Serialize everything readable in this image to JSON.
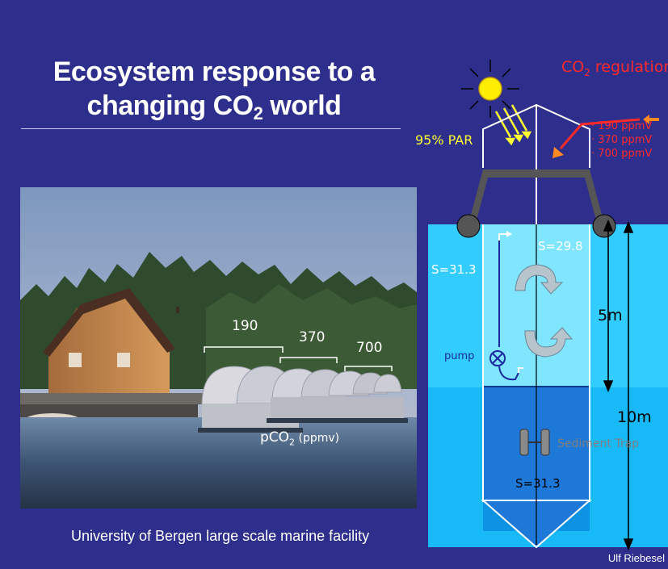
{
  "title": {
    "line1": "Ecosystem response to a",
    "line2_prefix": "changing CO",
    "line2_sub": "2",
    "line2_suffix": " world"
  },
  "photo": {
    "labels": [
      "190",
      "370",
      "700"
    ],
    "pco2_prefix": "pCO",
    "pco2_sub": "2",
    "pco2_suffix": " (ppmv)"
  },
  "caption": "University of Bergen large scale marine facility",
  "credit": "Ulf Riebesel",
  "diagram": {
    "co2_reg_prefix": "CO",
    "co2_reg_sub": "2",
    "co2_reg_suffix": " regulation",
    "levels": [
      "190 ppmV",
      "370 ppmV",
      "700 ppmV"
    ],
    "par": "95% PAR",
    "salinity_inner_top": "S=29.8",
    "salinity_outer": "S=31.3",
    "salinity_inner_bottom": "S=31.3",
    "pump": "pump",
    "depth_5m": "5m",
    "depth_10m": "10m",
    "sediment_trap": "Sediment Trap"
  },
  "colors": {
    "background": "#2e2e8c",
    "water_light": "#33ccff",
    "water_mid": "#00aaee",
    "water_deep": "#1e78d8",
    "regulation_red": "#ff2a2a",
    "par_yellow": "#ffff33"
  }
}
